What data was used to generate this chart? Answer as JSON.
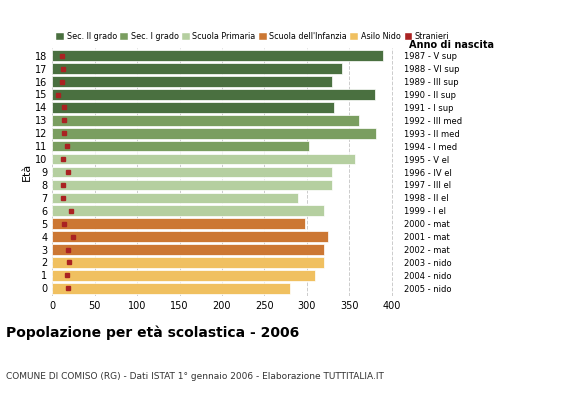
{
  "ages": [
    18,
    17,
    16,
    15,
    14,
    13,
    12,
    11,
    10,
    9,
    8,
    7,
    6,
    5,
    4,
    3,
    2,
    1,
    0
  ],
  "anno_nascita": [
    "1987 - V sup",
    "1988 - VI sup",
    "1989 - III sup",
    "1990 - II sup",
    "1991 - I sup",
    "1992 - III med",
    "1993 - II med",
    "1994 - I med",
    "1995 - V el",
    "1996 - IV el",
    "1997 - III el",
    "1998 - II el",
    "1999 - I el",
    "2000 - mat",
    "2001 - mat",
    "2002 - mat",
    "2003 - nido",
    "2004 - nido",
    "2005 - nido"
  ],
  "bar_values": [
    390,
    342,
    330,
    380,
    332,
    362,
    382,
    303,
    357,
    330,
    330,
    290,
    320,
    298,
    325,
    320,
    320,
    310,
    280
  ],
  "stranieri": [
    12,
    13,
    11,
    7,
    14,
    14,
    14,
    17,
    13,
    19,
    13,
    13,
    22,
    14,
    25,
    19,
    20,
    18,
    19
  ],
  "bar_colors": [
    "#4a7040",
    "#4a7040",
    "#4a7040",
    "#4a7040",
    "#4a7040",
    "#7a9e60",
    "#7a9e60",
    "#7a9e60",
    "#b5cfa0",
    "#b5cfa0",
    "#b5cfa0",
    "#b5cfa0",
    "#b5cfa0",
    "#cc7733",
    "#cc7733",
    "#cc7733",
    "#f0c060",
    "#f0c060",
    "#f0c060"
  ],
  "legend_labels": [
    "Sec. II grado",
    "Sec. I grado",
    "Scuola Primaria",
    "Scuola dell'Infanzia",
    "Asilo Nido",
    "Stranieri"
  ],
  "legend_colors": [
    "#4a7040",
    "#7a9e60",
    "#b5cfa0",
    "#cc7733",
    "#f0c060",
    "#aa2222"
  ],
  "stranieri_color": "#aa2222",
  "title": "Popolazione per età scolastica - 2006",
  "subtitle": "COMUNE DI COMISO (RG) - Dati ISTAT 1° gennaio 2006 - Elaborazione TUTTITALIA.IT",
  "ylabel": "Età",
  "right_label": "Anno di nascita",
  "xlabel_values": [
    0,
    50,
    100,
    150,
    200,
    250,
    300,
    350,
    400
  ],
  "xlim": [
    0,
    410
  ],
  "background_color": "#ffffff",
  "bar_height": 0.82,
  "grid_color": "#cccccc"
}
